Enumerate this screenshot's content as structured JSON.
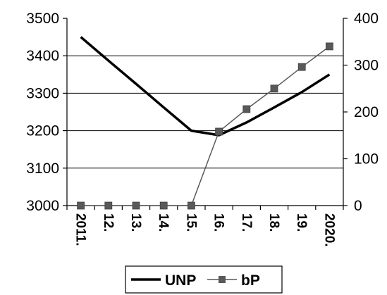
{
  "chart_data": {
    "type": "line",
    "x": [
      "2011.",
      "12.",
      "13.",
      "14.",
      "15.",
      "16.",
      "17.",
      "18.",
      "19.",
      "2020."
    ],
    "y_left": {
      "min": 3000,
      "max": 3500,
      "ticks": [
        "3000",
        "3100",
        "3200",
        "3300",
        "3400",
        "3500"
      ]
    },
    "y_right": {
      "min": 0,
      "max": 400,
      "ticks": [
        "0",
        "100",
        "200",
        "300",
        "400"
      ]
    },
    "grid": true,
    "legend_position": "bottom",
    "series": [
      {
        "name": "UNP",
        "axis": "left",
        "marker": "none",
        "color": "#000000",
        "values": [
          3450,
          3387,
          3325,
          3262,
          3200,
          3188,
          3222,
          3262,
          3303,
          3350
        ]
      },
      {
        "name": "bP",
        "axis": "right",
        "marker": "square",
        "color": "#595959",
        "values": [
          0,
          0,
          0,
          0,
          0,
          158,
          206,
          250,
          296,
          340
        ]
      }
    ]
  }
}
